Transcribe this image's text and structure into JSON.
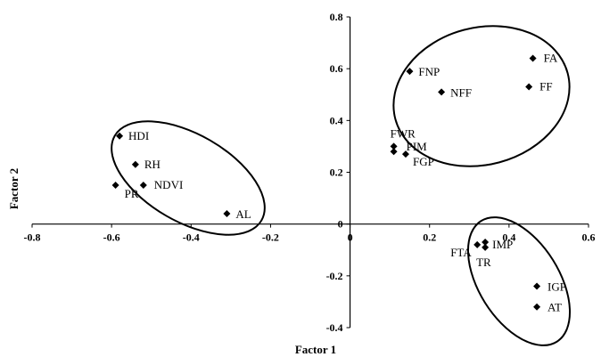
{
  "chart_data": {
    "type": "scatter",
    "title": "",
    "xlabel": "Factor 1",
    "ylabel": "Factor 2",
    "xlim": [
      -0.8,
      0.6
    ],
    "ylim": [
      -0.4,
      0.8
    ],
    "x_ticks": [
      "-0.8",
      "-0.6",
      "-0.4",
      "-0.2",
      "0",
      "0.2",
      "0.4",
      "0.6"
    ],
    "y_ticks": [
      "-0.4",
      "-0.2",
      "0",
      "0.2",
      "0.4",
      "0.6",
      "0.8"
    ],
    "marker": "diamond",
    "grid": false,
    "points": [
      {
        "label": "HDI",
        "x": -0.58,
        "y": 0.34
      },
      {
        "label": "RH",
        "x": -0.54,
        "y": 0.23
      },
      {
        "label": "NDVI",
        "x": -0.52,
        "y": 0.15
      },
      {
        "label": "PR",
        "x": -0.59,
        "y": 0.15
      },
      {
        "label": "AL",
        "x": -0.31,
        "y": 0.04
      },
      {
        "label": "FNP",
        "x": 0.15,
        "y": 0.59
      },
      {
        "label": "NFF",
        "x": 0.23,
        "y": 0.51
      },
      {
        "label": "FA",
        "x": 0.46,
        "y": 0.64
      },
      {
        "label": "FF",
        "x": 0.45,
        "y": 0.53
      },
      {
        "label": "FWR",
        "x": 0.11,
        "y": 0.3
      },
      {
        "label": "PIM",
        "x": 0.11,
        "y": 0.28
      },
      {
        "label": "FGP",
        "x": 0.14,
        "y": 0.27
      },
      {
        "label": "FTA",
        "x": 0.32,
        "y": -0.08
      },
      {
        "label": "IMP",
        "x": 0.34,
        "y": -0.07
      },
      {
        "label": "TR",
        "x": 0.34,
        "y": -0.09
      },
      {
        "label": "IGP",
        "x": 0.47,
        "y": -0.24
      },
      {
        "label": "AT",
        "x": 0.47,
        "y": -0.32
      }
    ]
  }
}
